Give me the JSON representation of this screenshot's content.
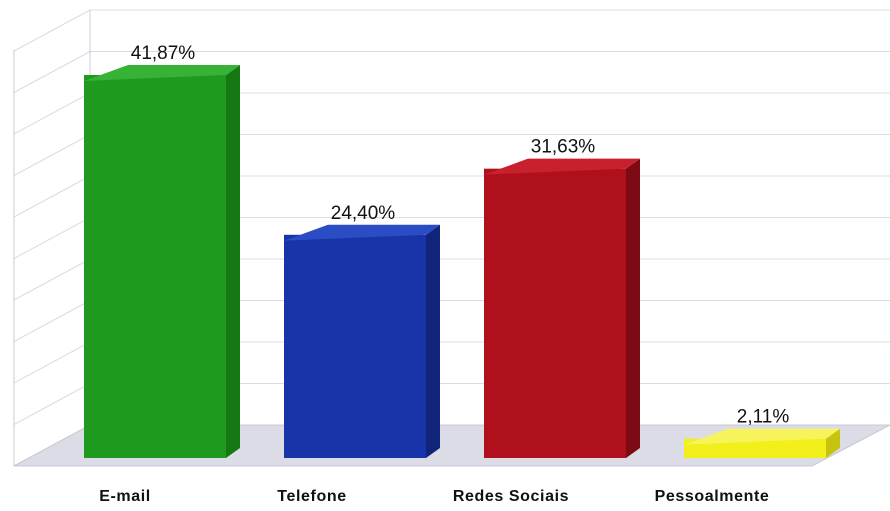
{
  "chart_data": {
    "type": "bar",
    "style": "3d-column",
    "categories": [
      "E-mail",
      "Telefone",
      "Redes Sociais",
      "Pessoalmente"
    ],
    "values": [
      41.87,
      24.4,
      31.63,
      2.11
    ],
    "value_labels": [
      "41,87%",
      "24,40%",
      "31,63%",
      "2,11%"
    ],
    "title": "",
    "xlabel": "",
    "ylabel": "",
    "ylim": [
      0,
      45
    ],
    "grid": true,
    "legend": "none",
    "colors": [
      "#1e9b1e",
      "#1834a8",
      "#b0101c",
      "#f2ef1a"
    ],
    "side_colors": [
      "#157815",
      "#10257a",
      "#7d0a12",
      "#c7c410"
    ],
    "top_colors": [
      "#36b236",
      "#2a4cc4",
      "#c8202c",
      "#f7f35a"
    ]
  }
}
